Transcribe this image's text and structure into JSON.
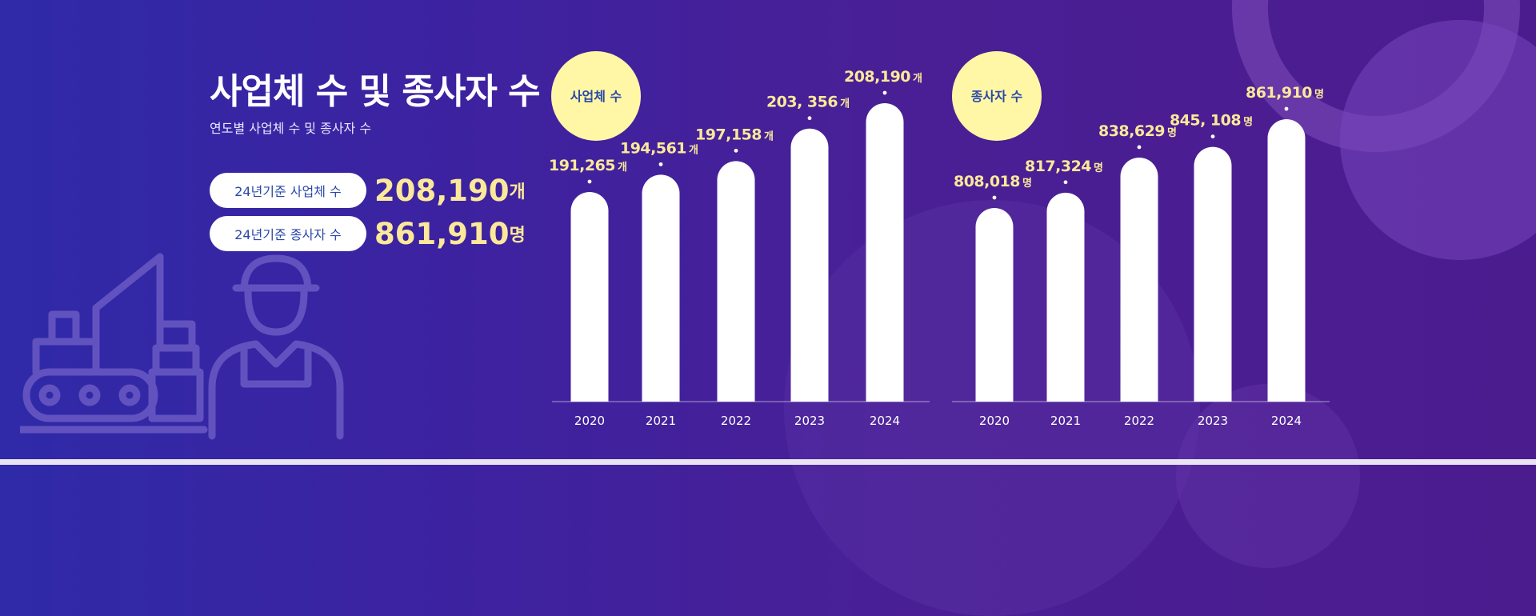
{
  "header": {
    "title": "사업체 수 및 종사자 수",
    "subtitle": "연도별 사업체 수 및 종사자 수"
  },
  "summary": [
    {
      "label": "24년기준 사업체 수",
      "value": "208,190",
      "unit": "개"
    },
    {
      "label": "24년기준 종사자 수",
      "value": "861,910",
      "unit": "명"
    }
  ],
  "colors": {
    "accent": "#fbe89a",
    "badge": "#fff7a6",
    "bar": "#ffffff",
    "label_blue": "#2a48a8"
  },
  "illustration": {
    "icons": [
      "excavator-icon",
      "construction-worker-icon"
    ]
  },
  "chart_data": [
    {
      "type": "bar",
      "title": "사업체 수",
      "categories": [
        "2020",
        "2021",
        "2022",
        "2023",
        "2024"
      ],
      "values": [
        191265,
        194561,
        197158,
        203356,
        208190
      ],
      "value_labels": [
        "191,265",
        "194,561",
        "197,158",
        "203, 356",
        "208,190"
      ],
      "unit": "개",
      "grid": false,
      "legend": "none"
    },
    {
      "type": "bar",
      "title": "종사자 수",
      "categories": [
        "2020",
        "2021",
        "2022",
        "2023",
        "2024"
      ],
      "values": [
        808018,
        817324,
        838629,
        845108,
        861910
      ],
      "value_labels": [
        "808,018",
        "817,324",
        "838,629",
        "845, 108",
        "861,910"
      ],
      "unit": "명",
      "grid": false,
      "legend": "none"
    }
  ]
}
